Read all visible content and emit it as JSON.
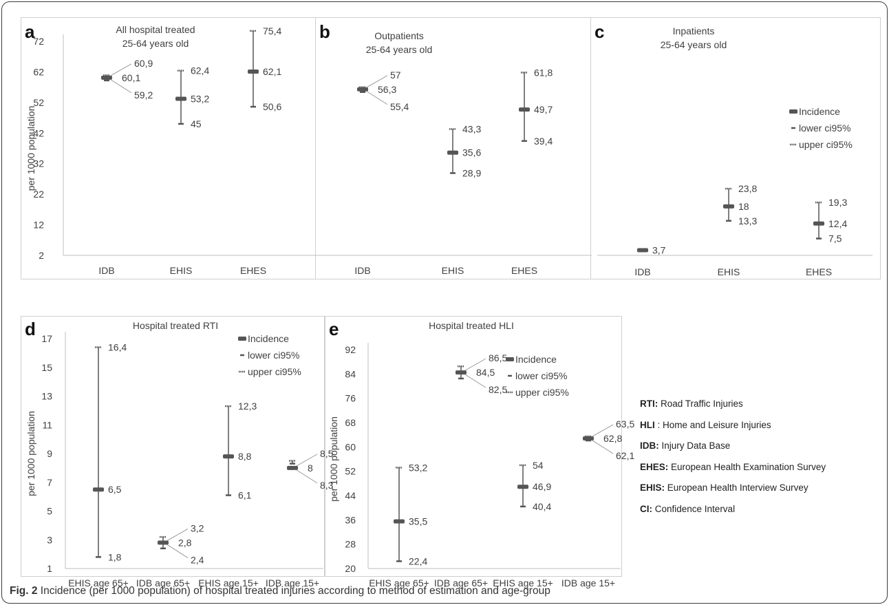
{
  "figure": {
    "caption_label": "Fig. 2",
    "caption_text": "Incidence (per 1000 population) of hospital treated injuries according to method of estimation and age-group"
  },
  "glossary": [
    {
      "abbr": "RTI:",
      "text": " Road Traffic Injuries"
    },
    {
      "abbr": "HLI",
      "text": " : Home and Leisure Injuries"
    },
    {
      "abbr": "IDB:",
      "text": " Injury Data Base"
    },
    {
      "abbr": "EHES:",
      "text": " European Health Examination Survey"
    },
    {
      "abbr": "EHIS:",
      "text": "  European Health Interview Survey"
    },
    {
      "abbr": "CI:",
      "text": " Confidence Interval"
    }
  ],
  "colors": {
    "mark": "#555555",
    "text": "#404040",
    "axis": "#bfbfbf",
    "frame": "#3a3a3a"
  },
  "legend_labels": [
    "Incidence",
    "lower ci95%",
    "upper ci95%"
  ],
  "chart_data": [
    {
      "panel": "a",
      "type": "scatter",
      "error_bars": true,
      "title": "All hospital treated",
      "subtitle": "25-64 years old",
      "ylabel": "per 1000 population",
      "ylim": [
        2,
        72
      ],
      "yticks": [
        2,
        12,
        22,
        32,
        42,
        52,
        62,
        72
      ],
      "categories": [
        "IDB",
        "EHIS",
        "EHES"
      ],
      "incidence": [
        60.1,
        53.2,
        62.1
      ],
      "lower": [
        59.2,
        45,
        50.6
      ],
      "upper": [
        60.9,
        62.4,
        75.4
      ],
      "labels": {
        "incidence": [
          "60,1",
          "53,2",
          "62,1"
        ],
        "lower": [
          "59,2",
          "45",
          "50,6"
        ],
        "upper": [
          "60,9",
          "62,4",
          "75,4"
        ]
      },
      "legend": false
    },
    {
      "panel": "b",
      "type": "scatter",
      "error_bars": true,
      "title": "Outpatients",
      "subtitle": "25-64 years old",
      "ylim": [
        2,
        72
      ],
      "categories": [
        "IDB",
        "EHIS",
        "EHES"
      ],
      "incidence": [
        56.3,
        35.6,
        49.7
      ],
      "lower": [
        55.4,
        28.9,
        39.4
      ],
      "upper": [
        57,
        43.3,
        61.8
      ],
      "labels": {
        "incidence": [
          "56,3",
          "35,6",
          "49,7"
        ],
        "lower": [
          "55,4",
          "28,9",
          "39,4"
        ],
        "upper": [
          "57",
          "43,3",
          "61,8"
        ]
      },
      "legend": false
    },
    {
      "panel": "c",
      "type": "scatter",
      "error_bars": true,
      "title": "Inpatients",
      "subtitle": "25-64 years old",
      "ylim": [
        2,
        72
      ],
      "categories": [
        "IDB",
        "EHIS",
        "EHES"
      ],
      "incidence": [
        3.7,
        18,
        12.4
      ],
      "lower": [
        3.5,
        13.3,
        7.5
      ],
      "upper": [
        3.9,
        23.8,
        19.3
      ],
      "labels": {
        "incidence": [
          "3,7",
          "18",
          "12,4"
        ],
        "lower": [
          "",
          "13,3",
          "7,5"
        ],
        "upper": [
          "",
          "23,8",
          "19,3"
        ]
      },
      "legend": true,
      "legend_position": "right"
    },
    {
      "panel": "d",
      "type": "scatter",
      "error_bars": true,
      "title": "Hospital treated RTI",
      "ylabel": "per 1000 population",
      "ylim": [
        1,
        17
      ],
      "yticks": [
        1,
        3,
        5,
        7,
        9,
        11,
        13,
        15,
        17
      ],
      "categories": [
        "EHIS age  65+",
        "IDB age 65+",
        "EHIS age 15+",
        "IDB age 15+"
      ],
      "incidence": [
        6.5,
        2.8,
        8.8,
        8
      ],
      "lower": [
        1.8,
        2.4,
        6.1,
        8.3
      ],
      "upper": [
        16.4,
        3.2,
        12.3,
        8.5
      ],
      "labels": {
        "incidence": [
          "6,5",
          "2,8",
          "8,8",
          "8"
        ],
        "lower": [
          "1,8",
          "2,4",
          "6,1",
          "8,3"
        ],
        "upper": [
          "16,4",
          "3,2",
          "12,3",
          "8,5"
        ]
      },
      "legend": true,
      "legend_position": "top-right"
    },
    {
      "panel": "e",
      "type": "scatter",
      "error_bars": true,
      "title": "Hospital treated HLI",
      "ylabel": "per 1000 population",
      "ylim": [
        20,
        92
      ],
      "yticks": [
        20,
        28,
        36,
        44,
        52,
        60,
        68,
        76,
        84,
        92
      ],
      "categories": [
        "EHIS age 65+",
        "IDB age 65+",
        "EHIS age 15+",
        "IDB age 15+"
      ],
      "incidence": [
        35.5,
        84.5,
        46.9,
        62.8
      ],
      "lower": [
        22.4,
        82.5,
        40.4,
        62.1
      ],
      "upper": [
        53.2,
        86.5,
        54,
        63.5
      ],
      "labels": {
        "incidence": [
          "35,5",
          "84,5",
          "46,9",
          "62,8"
        ],
        "lower": [
          "22,4",
          "82,5",
          "40,4",
          "62,1"
        ],
        "upper": [
          "53,2",
          "86,5",
          "54",
          "63,5"
        ]
      },
      "legend": true,
      "legend_position": "top-right"
    }
  ]
}
